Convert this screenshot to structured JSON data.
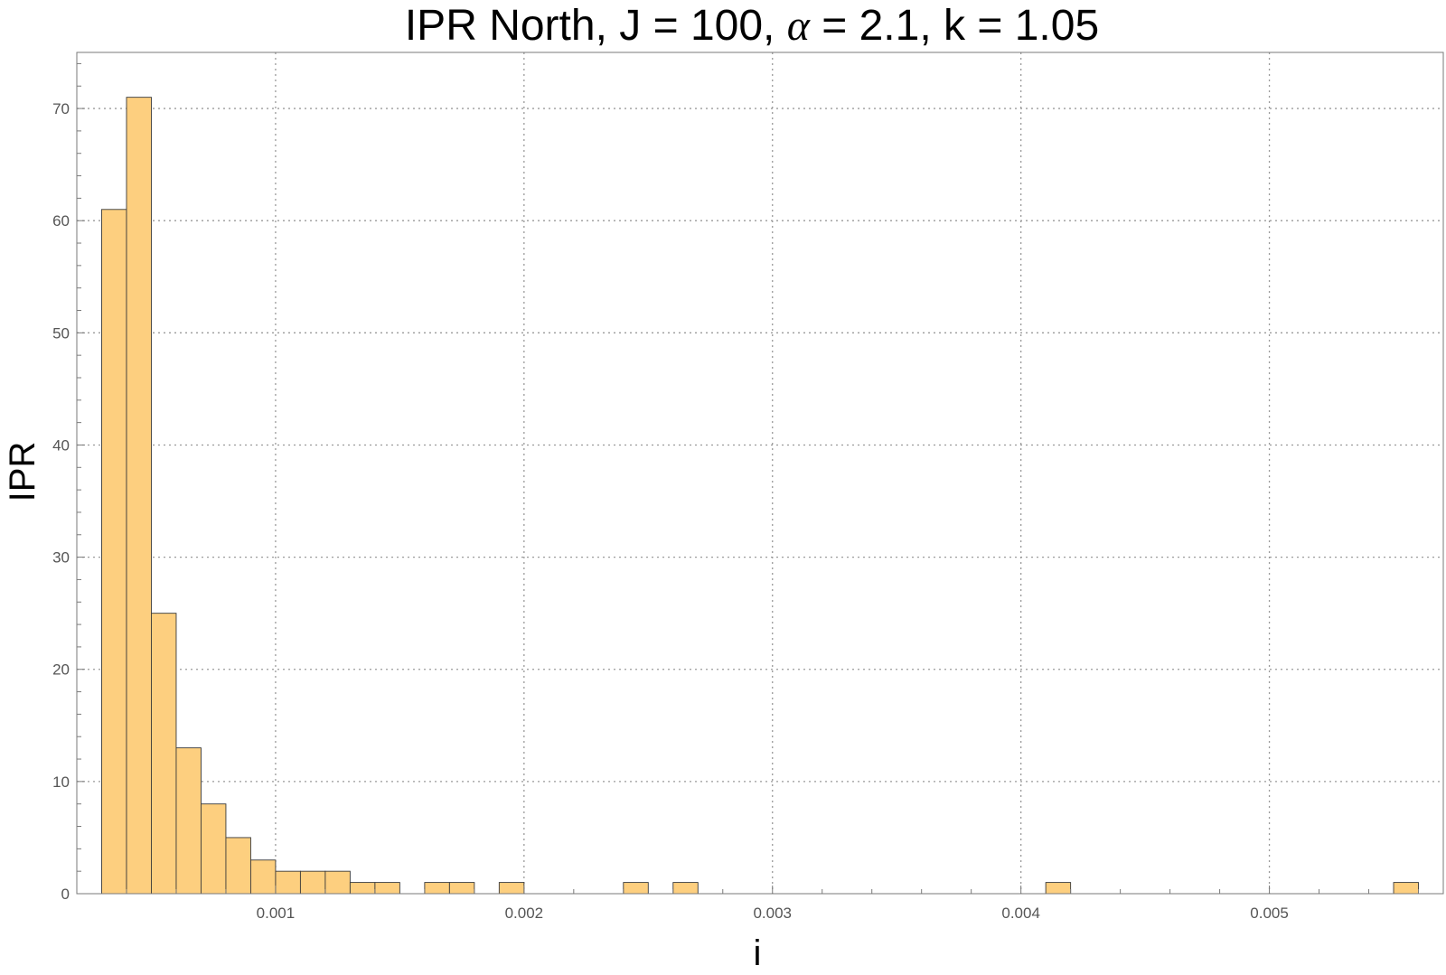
{
  "chart_data": {
    "type": "bar",
    "title": "IPR North, J = 100, α = 2.1, k = 1.05",
    "title_parts": {
      "pre": "IPR North, J = 100, ",
      "alpha": "α",
      "post": " = 2.1, k = 1.05"
    },
    "xlabel": "i",
    "ylabel": "IPR",
    "xlim": [
      0.0002,
      0.0057
    ],
    "ylim": [
      0,
      75
    ],
    "x_ticks": [
      0.001,
      0.002,
      0.003,
      0.004,
      0.005
    ],
    "x_tick_labels": [
      "0.001",
      "0.002",
      "0.003",
      "0.004",
      "0.005"
    ],
    "y_ticks": [
      0,
      10,
      20,
      30,
      40,
      50,
      60,
      70
    ],
    "y_tick_labels": [
      "0",
      "10",
      "20",
      "30",
      "40",
      "50",
      "60",
      "70"
    ],
    "bin_width": 0.0001,
    "bin_starts": [
      0.0003,
      0.0004,
      0.0005,
      0.0006,
      0.0007,
      0.0008,
      0.0009,
      0.001,
      0.0011,
      0.0012,
      0.0013,
      0.0014,
      0.0016,
      0.0017,
      0.0019,
      0.0024,
      0.0026,
      0.0041,
      0.0055
    ],
    "values": [
      61,
      71,
      25,
      13,
      8,
      5,
      3,
      2,
      2,
      2,
      1,
      1,
      1,
      1,
      1,
      1,
      1,
      1,
      1
    ],
    "grid": true,
    "bar_color": "#fdcf7f",
    "bar_edge_color": "#3a3a3a"
  }
}
